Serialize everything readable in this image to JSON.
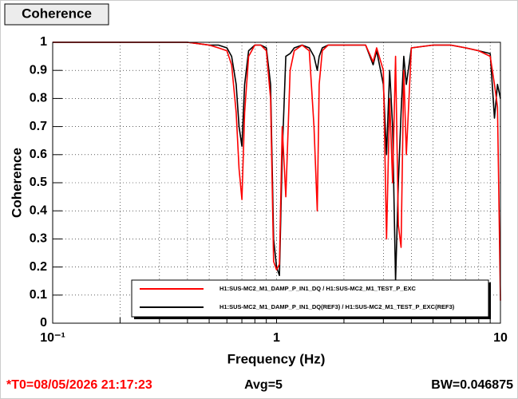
{
  "chart_data": {
    "type": "line",
    "title": "Coherence",
    "xlabel": "Frequency (Hz)",
    "ylabel": "Coherence",
    "footer": [
      "*T0=08/05/2026 21:17:23",
      "Avg=5",
      "BW=0.046875"
    ],
    "footer_colors": [
      "#ff0000",
      "#000000",
      "#000000"
    ],
    "xscale": "log",
    "grid": true,
    "legend": "lower right",
    "xlim": [
      0.1,
      10
    ],
    "xticks": [
      {
        "value": 0.1,
        "label": "10⁻¹"
      },
      1,
      10
    ],
    "xminorticks": [
      0.2,
      0.3,
      0.4,
      0.5,
      0.6,
      0.7,
      0.8,
      0.9,
      2,
      3,
      4,
      5,
      6,
      7,
      8,
      9
    ],
    "ylim": [
      0,
      1
    ],
    "yticks": [
      0,
      0.1,
      0.2,
      0.3,
      0.4,
      0.5,
      0.6,
      0.7,
      0.8,
      0.9,
      1
    ],
    "x": [
      0.1,
      0.2,
      0.3,
      0.4,
      0.5,
      0.55,
      0.6,
      0.63,
      0.66,
      0.68,
      0.7,
      0.72,
      0.75,
      0.8,
      0.85,
      0.9,
      0.94,
      0.97,
      1.0,
      1.03,
      1.06,
      1.1,
      1.15,
      1.2,
      1.3,
      1.4,
      1.47,
      1.52,
      1.55,
      1.6,
      1.7,
      2.0,
      2.5,
      2.7,
      2.8,
      3.0,
      3.1,
      3.2,
      3.3,
      3.4,
      3.5,
      3.6,
      3.7,
      3.8,
      4.0,
      5,
      6,
      7,
      8,
      9,
      9.4,
      9.7,
      10
    ],
    "series": [
      {
        "name": "H1:SUS-MC2_M1_DAMP_P_IN1_DQ / H1:SUS-MC2_M1_TEST_P_EXC",
        "color": "#ff0000",
        "values": [
          1,
          1,
          1,
          1,
          0.99,
          0.98,
          0.97,
          0.92,
          0.75,
          0.55,
          0.44,
          0.75,
          0.95,
          0.99,
          0.99,
          0.97,
          0.8,
          0.22,
          0.19,
          0.21,
          0.7,
          0.45,
          0.9,
          0.97,
          0.99,
          0.97,
          0.7,
          0.4,
          0.85,
          0.97,
          0.99,
          0.99,
          0.99,
          0.93,
          0.98,
          0.9,
          0.3,
          0.8,
          0.5,
          0.95,
          0.35,
          0.27,
          0.9,
          0.6,
          0.98,
          0.99,
          0.99,
          0.98,
          0.97,
          0.95,
          0.85,
          0.77,
          0.08
        ]
      },
      {
        "name": "H1:SUS-MC2_M1_DAMP_P_IN1_DQ(REF3) / H1:SUS-MC2_M1_TEST_P_EXC(REF3)",
        "color": "#000000",
        "values": [
          1,
          1,
          1,
          1,
          0.99,
          0.99,
          0.98,
          0.95,
          0.85,
          0.7,
          0.63,
          0.85,
          0.97,
          0.99,
          0.99,
          0.98,
          0.85,
          0.3,
          0.2,
          0.17,
          0.6,
          0.95,
          0.96,
          0.98,
          0.99,
          0.98,
          0.95,
          0.9,
          0.95,
          0.98,
          0.99,
          0.99,
          0.99,
          0.92,
          0.97,
          0.85,
          0.6,
          0.9,
          0.7,
          0.15,
          0.5,
          0.75,
          0.95,
          0.85,
          0.98,
          0.99,
          0.99,
          0.98,
          0.97,
          0.96,
          0.73,
          0.85,
          0.8
        ]
      }
    ]
  }
}
